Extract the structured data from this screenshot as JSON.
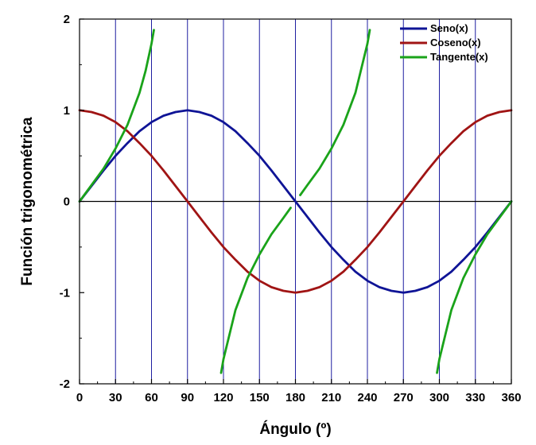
{
  "chart_data": {
    "type": "line",
    "xlabel": "Ángulo (º)",
    "ylabel": "Función trigonométrica",
    "xlim": [
      0,
      360
    ],
    "ylim": [
      -2,
      2
    ],
    "x_ticks": [
      0,
      30,
      60,
      90,
      120,
      150,
      180,
      210,
      240,
      270,
      300,
      330,
      360
    ],
    "y_ticks": [
      2,
      1,
      0,
      -1,
      -2
    ],
    "vertical_gridlines": [
      30,
      60,
      90,
      120,
      150,
      180,
      210,
      240,
      270,
      300,
      330
    ],
    "gridline_color": "#1f1fa0",
    "legend_position": "top-right",
    "series": [
      {
        "name": "Seno(x)",
        "color": "#0f1496",
        "x": [
          0,
          10,
          20,
          30,
          40,
          50,
          60,
          70,
          80,
          90,
          100,
          110,
          120,
          130,
          140,
          150,
          160,
          170,
          180,
          190,
          200,
          210,
          220,
          230,
          240,
          250,
          260,
          270,
          280,
          290,
          300,
          310,
          320,
          330,
          340,
          350,
          360
        ],
        "y": [
          0,
          0.17,
          0.34,
          0.5,
          0.64,
          0.77,
          0.87,
          0.94,
          0.98,
          1,
          0.98,
          0.94,
          0.87,
          0.77,
          0.64,
          0.5,
          0.34,
          0.17,
          0,
          -0.17,
          -0.34,
          -0.5,
          -0.64,
          -0.77,
          -0.87,
          -0.94,
          -0.98,
          -1,
          -0.98,
          -0.94,
          -0.87,
          -0.77,
          -0.64,
          -0.5,
          -0.34,
          -0.17,
          0
        ]
      },
      {
        "name": "Coseno(x)",
        "color": "#a01414",
        "x": [
          0,
          10,
          20,
          30,
          40,
          50,
          60,
          70,
          80,
          90,
          100,
          110,
          120,
          130,
          140,
          150,
          160,
          170,
          180,
          190,
          200,
          210,
          220,
          230,
          240,
          250,
          260,
          270,
          280,
          290,
          300,
          310,
          320,
          330,
          340,
          350,
          360
        ],
        "y": [
          1,
          0.98,
          0.94,
          0.87,
          0.77,
          0.64,
          0.5,
          0.34,
          0.17,
          0,
          -0.17,
          -0.34,
          -0.5,
          -0.64,
          -0.77,
          -0.87,
          -0.94,
          -0.98,
          -1,
          -0.98,
          -0.94,
          -0.87,
          -0.77,
          -0.64,
          -0.5,
          -0.34,
          -0.17,
          0,
          0.17,
          0.34,
          0.5,
          0.64,
          0.77,
          0.87,
          0.94,
          0.98,
          1
        ]
      },
      {
        "name": "Tangente(x)",
        "color": "#1aa31a",
        "segments": [
          {
            "x": [
              0,
              10,
              20,
              30,
              40,
              50,
              55,
              60,
              62
            ],
            "y": [
              0,
              0.18,
              0.36,
              0.58,
              0.84,
              1.19,
              1.43,
              1.73,
              1.88
            ]
          },
          {
            "x": [
              118,
              120,
              130,
              140,
              150,
              160,
              170,
              176
            ],
            "y": [
              -1.88,
              -1.73,
              -1.19,
              -0.84,
              -0.58,
              -0.36,
              -0.18,
              -0.07
            ]
          },
          {
            "x": [
              184,
              190,
              200,
              210,
              220,
              230,
              240,
              242
            ],
            "y": [
              0.07,
              0.18,
              0.36,
              0.58,
              0.84,
              1.19,
              1.73,
              1.88
            ]
          },
          {
            "x": [
              298,
              300,
              310,
              320,
              330,
              340,
              350,
              360
            ],
            "y": [
              -1.88,
              -1.73,
              -1.19,
              -0.84,
              -0.58,
              -0.36,
              -0.18,
              0
            ]
          }
        ]
      }
    ]
  }
}
